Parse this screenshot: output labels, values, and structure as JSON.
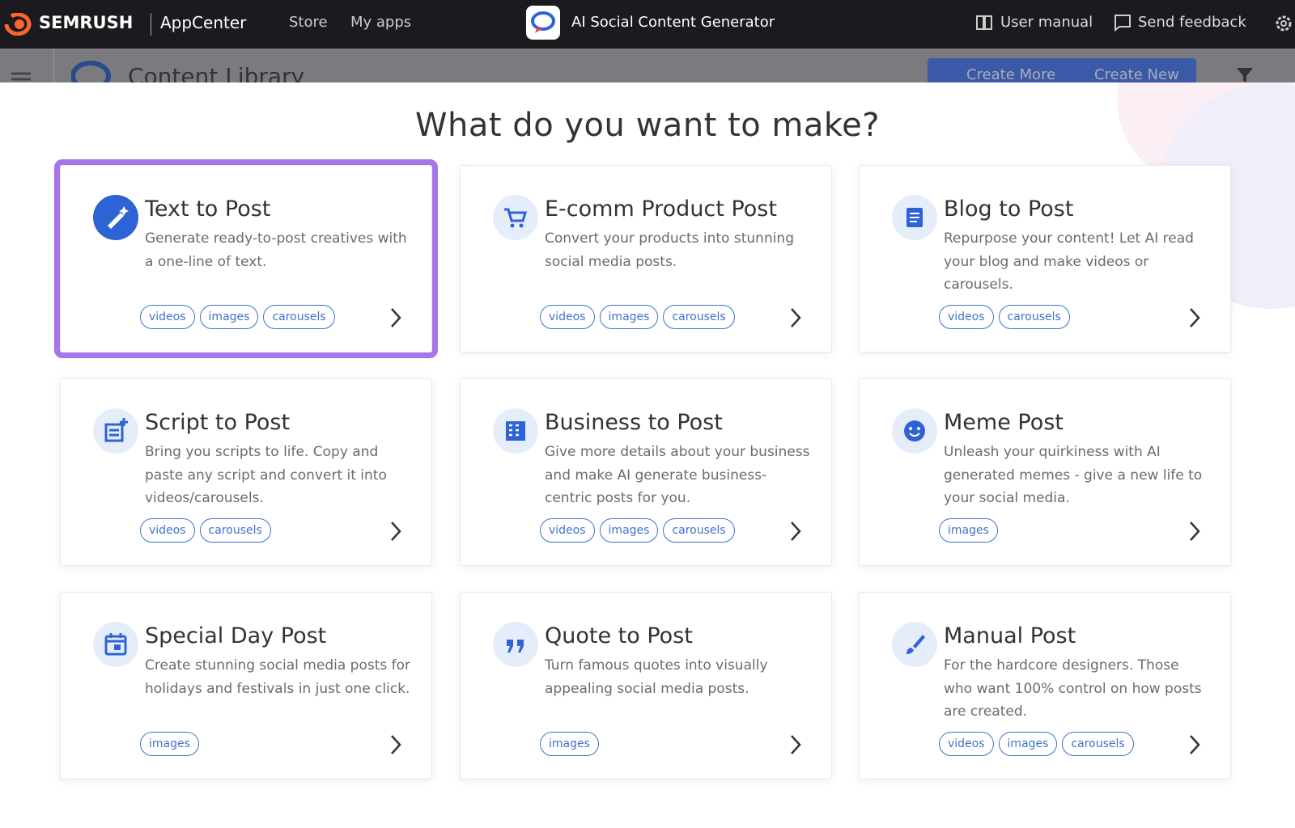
{
  "topbar": {
    "brand": "SEMRUSH",
    "product": "AppCenter",
    "nav": [
      "Store",
      "My apps"
    ],
    "app_title": "AI Social Content Generator",
    "actions": [
      "User manual",
      "Send feedback"
    ]
  },
  "background": {
    "title": "Content Library",
    "buttons": [
      "Create More",
      "Create New"
    ]
  },
  "modal": {
    "title": "What do you want to make?",
    "cards": [
      {
        "title": "Text to Post",
        "description": "Generate ready-to-post creatives with a one-line of text.",
        "tags": [
          "videos",
          "images",
          "carousels"
        ]
      },
      {
        "title": "E-comm Product Post",
        "description": "Convert your products into stunning social media posts.",
        "tags": [
          "videos",
          "images",
          "carousels"
        ]
      },
      {
        "title": "Blog to Post",
        "description": "Repurpose your content! Let AI read your blog and make videos or carousels.",
        "tags": [
          "videos",
          "carousels"
        ]
      },
      {
        "title": "Script to Post",
        "description": "Bring you scripts to life. Copy and paste any script and convert it into videos/carousels.",
        "tags": [
          "videos",
          "carousels"
        ]
      },
      {
        "title": "Business to Post",
        "description": "Give more details about your business and make AI generate business-centric posts for you.",
        "tags": [
          "videos",
          "images",
          "carousels"
        ]
      },
      {
        "title": "Meme Post",
        "description": "Unleash your quirkiness with AI generated memes - give a new life to your social media.",
        "tags": [
          "images"
        ]
      },
      {
        "title": "Special Day Post",
        "description": "Create stunning social media posts for holidays and festivals in just one click.",
        "tags": [
          "images"
        ]
      },
      {
        "title": "Quote to Post",
        "description": "Turn famous quotes into visually appealing social media posts.",
        "tags": [
          "images"
        ]
      },
      {
        "title": "Manual Post",
        "description": "For the hardcore designers. Those who want 100% control on how posts are created.",
        "tags": [
          "videos",
          "images",
          "carousels"
        ]
      }
    ]
  }
}
